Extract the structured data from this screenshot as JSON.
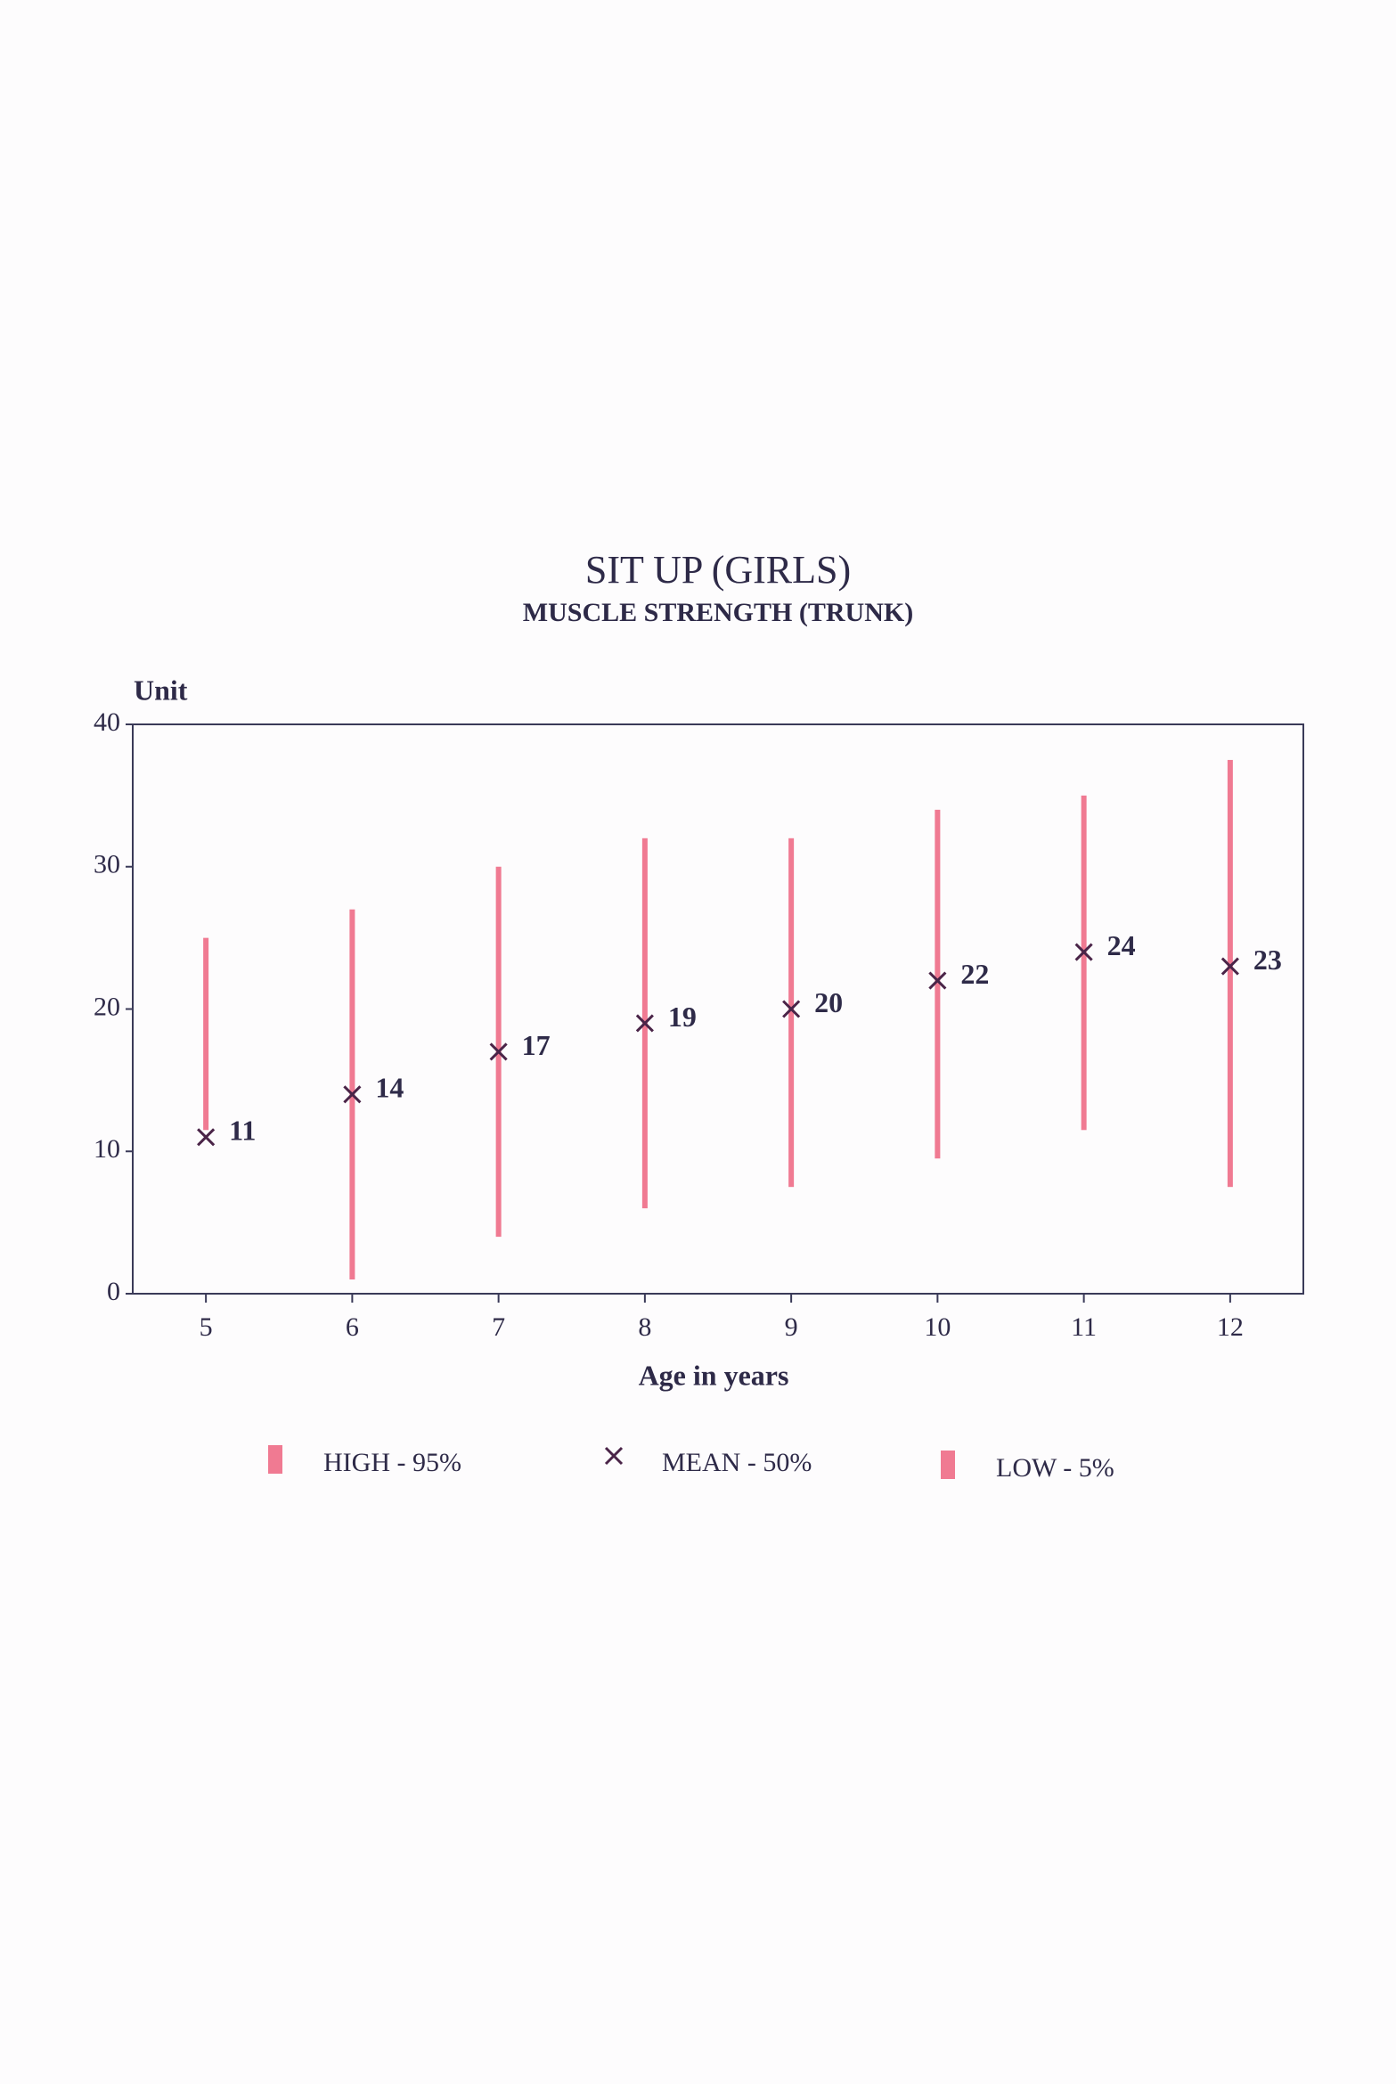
{
  "chart_data": {
    "type": "range",
    "title": "SIT UP (GIRLS)",
    "subtitle": "MUSCLE STRENGTH (TRUNK)",
    "y_label": "Unit",
    "x_label": "Age in years",
    "categories": [
      "5",
      "6",
      "7",
      "8",
      "9",
      "10",
      "11",
      "12"
    ],
    "series": [
      {
        "name": "HIGH - 95%",
        "color": "#f07a92",
        "values": [
          25,
          27,
          30,
          32,
          32,
          34,
          35,
          37.5
        ]
      },
      {
        "name": "MEAN - 50%",
        "color": "#4a2448",
        "values": [
          11,
          14,
          17,
          19,
          20,
          22,
          24,
          23
        ]
      },
      {
        "name": "LOW - 5%",
        "color": "#f07a92",
        "values": [
          11.5,
          1,
          4,
          6,
          7.5,
          9.5,
          11.5,
          7.5
        ]
      }
    ],
    "ylim": [
      0,
      40
    ],
    "yticks": [
      0,
      10,
      20,
      30,
      40
    ],
    "grid": false
  }
}
